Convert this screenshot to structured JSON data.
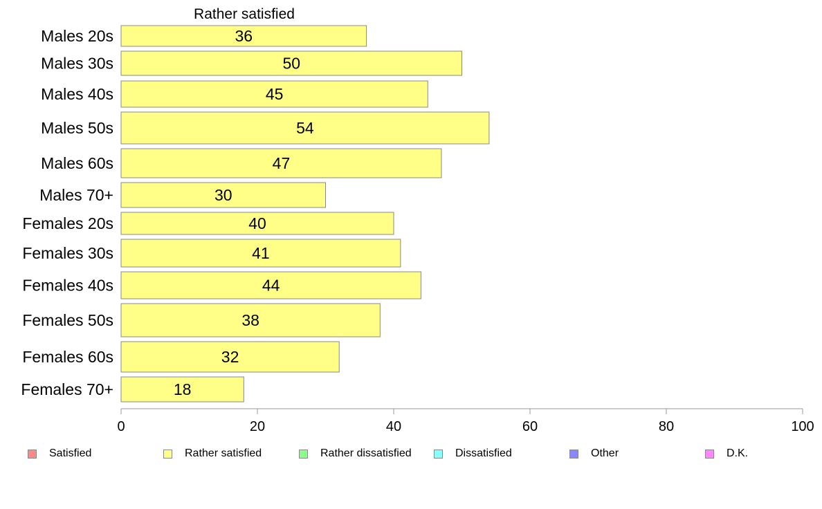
{
  "chart_data": {
    "type": "bar",
    "orientation": "horizontal",
    "title": "Rather satisfied",
    "categories": [
      "Males 20s",
      "Males 30s",
      "Males 40s",
      "Males 50s",
      "Males 60s",
      "Males 70+",
      "Females 20s",
      "Females 30s",
      "Females 40s",
      "Females 50s",
      "Females 60s",
      "Females 70+"
    ],
    "series": [
      {
        "name": "Rather satisfied",
        "values": [
          36,
          50,
          45,
          54,
          47,
          30,
          40,
          41,
          44,
          38,
          32,
          18
        ]
      }
    ],
    "xlim": [
      0,
      100
    ],
    "xticks": [
      0,
      20,
      40,
      60,
      80,
      100
    ],
    "bar_color": "#ffff88",
    "bar_edge_color": "#888888",
    "grid": false,
    "legend_position": "bottom",
    "legend": [
      {
        "label": "Satisfied",
        "color": "#ff8888"
      },
      {
        "label": "Rather satisfied",
        "color": "#ffff88"
      },
      {
        "label": "Rather dissatisfied",
        "color": "#88ff88"
      },
      {
        "label": "Dissatisfied",
        "color": "#88ffff"
      },
      {
        "label": "Other",
        "color": "#8888ff"
      },
      {
        "label": "D.K.",
        "color": "#ff88ff"
      }
    ]
  }
}
